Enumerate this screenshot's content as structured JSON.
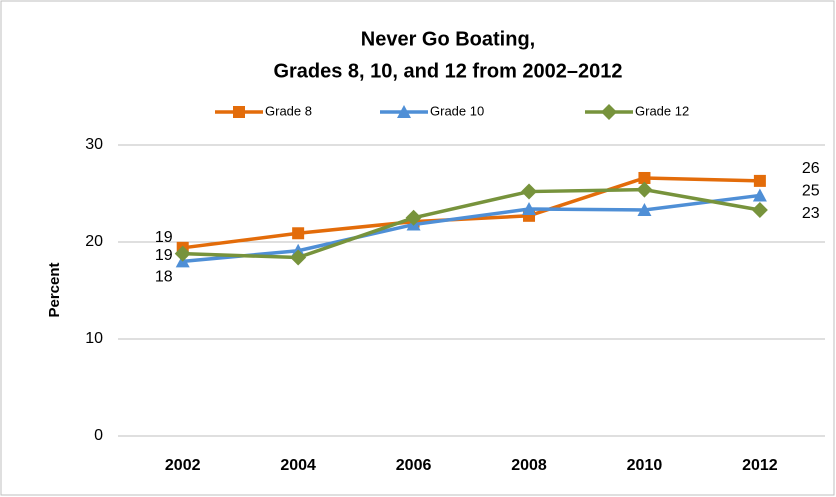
{
  "chart_data": {
    "type": "line",
    "title": [
      "Never Go Boating,",
      "Grades 8, 10, and 12 from 2002–2012"
    ],
    "y_label": "Percent",
    "categories": [
      "2002",
      "2004",
      "2006",
      "2008",
      "2010",
      "2012"
    ],
    "series": [
      {
        "name": "Grade 8",
        "color": "#e36c0a",
        "marker": "square",
        "values": [
          19.4,
          20.9,
          22.1,
          22.7,
          26.6,
          26.3
        ],
        "value_labels": [
          "19",
          null,
          null,
          null,
          null,
          "26"
        ]
      },
      {
        "name": "Grade 10",
        "color": "#4f8fd6",
        "marker": "triangle",
        "values": [
          18.0,
          19.1,
          21.8,
          23.4,
          23.3,
          24.8
        ],
        "value_labels": [
          "18",
          null,
          null,
          null,
          null,
          "25"
        ]
      },
      {
        "name": "Grade 12",
        "color": "#77933c",
        "marker": "diamond",
        "values": [
          18.8,
          18.4,
          22.5,
          25.2,
          25.4,
          23.3
        ],
        "value_labels": [
          "19",
          null,
          null,
          null,
          null,
          "23"
        ]
      }
    ],
    "ylim": [
      0,
      30
    ],
    "yticks": [
      0,
      10,
      20,
      30
    ],
    "grid": true,
    "legend": "top"
  }
}
